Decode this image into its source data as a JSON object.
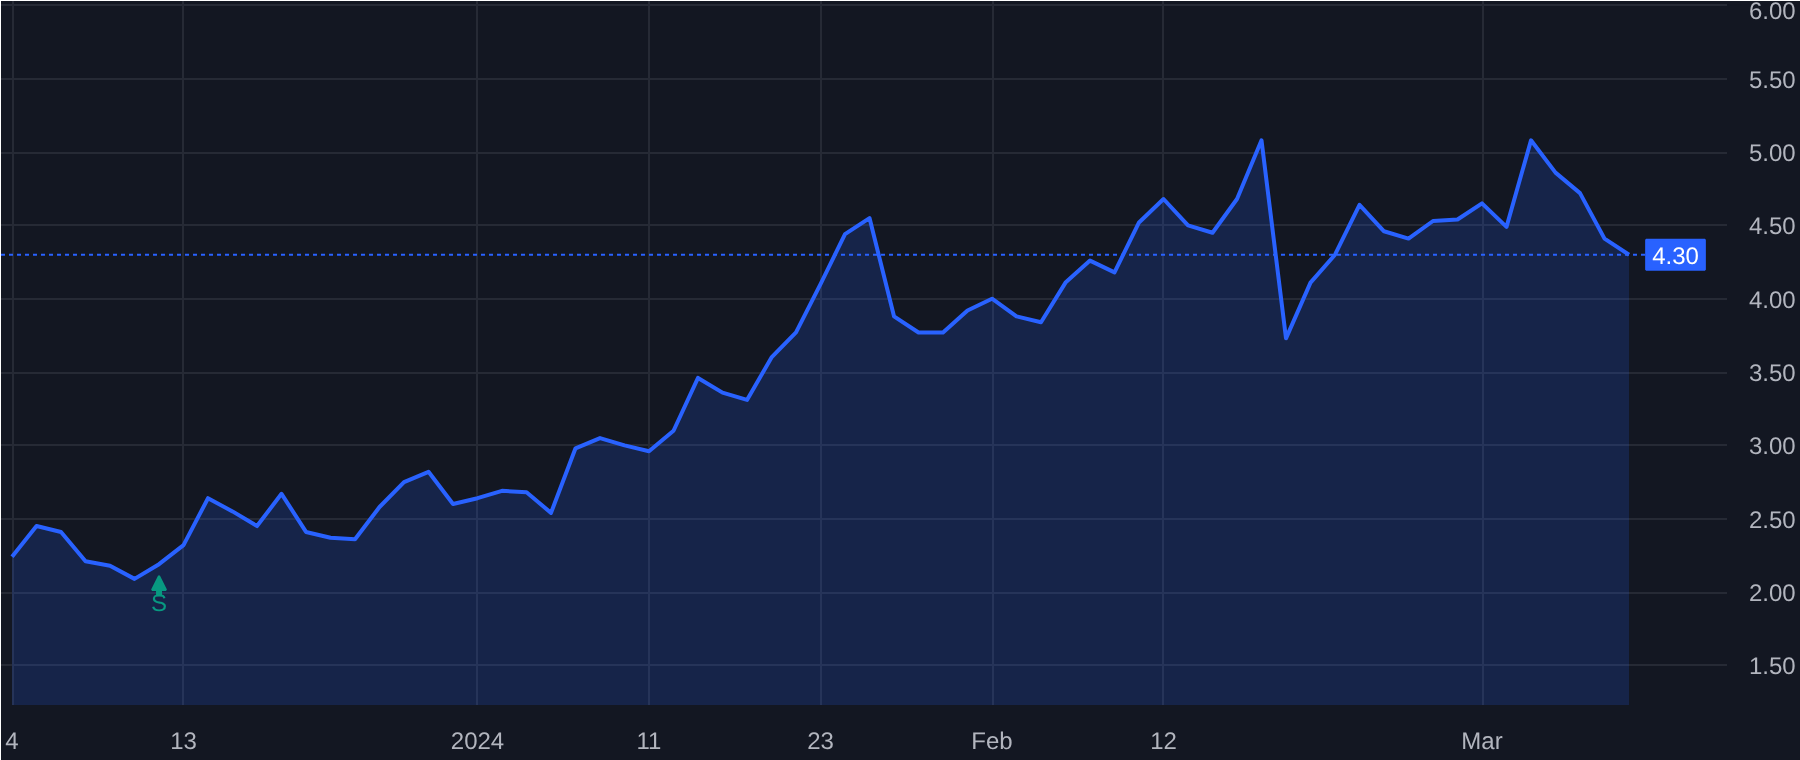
{
  "chart_data": {
    "type": "area",
    "categories": [
      "4",
      null,
      null,
      null,
      null,
      null,
      null,
      "13",
      null,
      null,
      null,
      null,
      null,
      null,
      null,
      null,
      null,
      null,
      null,
      "2024",
      null,
      null,
      null,
      null,
      null,
      null,
      "11",
      null,
      null,
      null,
      null,
      null,
      null,
      "23",
      null,
      null,
      null,
      null,
      null,
      null,
      "Feb",
      null,
      null,
      null,
      null,
      null,
      null,
      "12",
      null,
      null,
      null,
      null,
      null,
      null,
      null,
      null,
      null,
      null,
      null,
      null,
      "Mar",
      null,
      null,
      null,
      null,
      null,
      null
    ],
    "series": [
      {
        "color": "#2962ff",
        "values": [
          2.24,
          2.45,
          2.41,
          2.21,
          2.18,
          2.09,
          2.19,
          2.32,
          2.64,
          2.55,
          2.45,
          2.67,
          2.41,
          2.37,
          2.36,
          2.58,
          2.75,
          2.82,
          2.6,
          2.64,
          2.69,
          2.68,
          2.54,
          2.98,
          3.05,
          3.0,
          2.96,
          3.1,
          3.46,
          3.36,
          3.31,
          3.6,
          3.77,
          4.1,
          4.44,
          4.55,
          3.88,
          3.77,
          3.77,
          3.92,
          4.0,
          3.88,
          3.84,
          4.11,
          4.26,
          4.18,
          4.52,
          4.68,
          4.5,
          4.45,
          4.68,
          5.08,
          3.73,
          4.11,
          4.3,
          4.64,
          4.46,
          4.41,
          4.53,
          4.54,
          4.65,
          4.49,
          5.08,
          4.86,
          4.72,
          4.41,
          4.3
        ]
      }
    ],
    "ylim": [
      1.23,
      6.03
    ],
    "yticks": [
      {
        "value": 1.5,
        "label": "1.50"
      },
      {
        "value": 2.0,
        "label": "2.00"
      },
      {
        "value": 2.5,
        "label": "2.50"
      },
      {
        "value": 3.0,
        "label": "3.00"
      },
      {
        "value": 3.5,
        "label": "3.50"
      },
      {
        "value": 4.0,
        "label": "4.00"
      },
      {
        "value": 4.5,
        "label": "4.50"
      },
      {
        "value": 5.0,
        "label": "5.00"
      },
      {
        "value": 5.5,
        "label": "5.50"
      },
      {
        "value": 6.0,
        "label": "6.00"
      }
    ],
    "ref_lines": [
      {
        "axis": "y",
        "value": 4.3,
        "label": "4.30",
        "color": "#2962ff",
        "line_style": "dotted"
      }
    ],
    "annotations": [
      {
        "text": "S",
        "y": 2.19
      }
    ],
    "grid": true
  }
}
